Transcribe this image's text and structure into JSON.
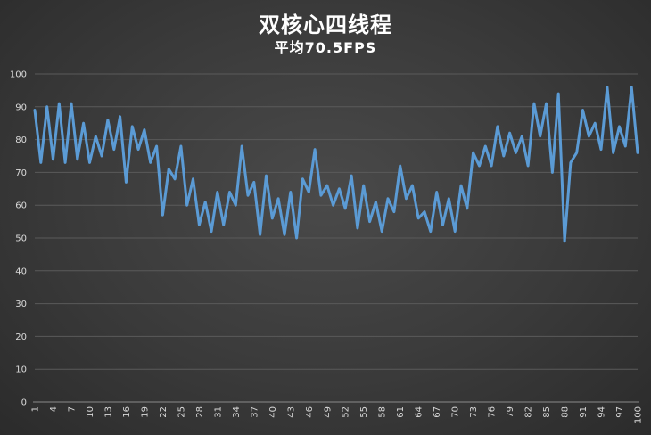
{
  "chart_data": {
    "type": "line",
    "title": "双核心四线程",
    "subtitle": "平均70.5FPS",
    "xlabel": "",
    "ylabel": "",
    "ylim": [
      0,
      100
    ],
    "yticks": [
      0,
      10,
      20,
      30,
      40,
      50,
      60,
      70,
      80,
      90,
      100
    ],
    "x": [
      1,
      2,
      3,
      4,
      5,
      6,
      7,
      8,
      9,
      10,
      11,
      12,
      13,
      14,
      15,
      16,
      17,
      18,
      19,
      20,
      21,
      22,
      23,
      24,
      25,
      26,
      27,
      28,
      29,
      30,
      31,
      32,
      33,
      34,
      35,
      36,
      37,
      38,
      39,
      40,
      41,
      42,
      43,
      44,
      45,
      46,
      47,
      48,
      49,
      50,
      51,
      52,
      53,
      54,
      55,
      56,
      57,
      58,
      59,
      60,
      61,
      62,
      63,
      64,
      65,
      66,
      67,
      68,
      69,
      70,
      71,
      72,
      73,
      74,
      75,
      76,
      77,
      78,
      79,
      80,
      81,
      82,
      83,
      84,
      85,
      86,
      87,
      88,
      89,
      90,
      91,
      92,
      93,
      94,
      95,
      96,
      97,
      98,
      99,
      100
    ],
    "xtick_labels": [
      "1",
      "4",
      "7",
      "10",
      "13",
      "16",
      "19",
      "22",
      "25",
      "28",
      "31",
      "34",
      "37",
      "40",
      "43",
      "46",
      "49",
      "52",
      "55",
      "58",
      "61",
      "64",
      "67",
      "70",
      "73",
      "76",
      "79",
      "82",
      "85",
      "88",
      "91",
      "94",
      "97",
      "100"
    ],
    "grid": true,
    "line_color": "#5b9bd5",
    "series": [
      {
        "values": [
          89,
          73,
          90,
          74,
          91,
          73,
          91,
          74,
          85,
          73,
          81,
          75,
          86,
          77,
          87,
          67,
          84,
          77,
          83,
          73,
          78,
          57,
          71,
          68,
          78,
          60,
          68,
          54,
          61,
          52,
          64,
          54,
          64,
          60,
          78,
          63,
          67,
          51,
          69,
          56,
          62,
          51,
          64,
          50,
          68,
          64,
          77,
          63,
          66,
          60,
          65,
          59,
          69,
          53,
          66,
          55,
          61,
          52,
          62,
          58,
          72,
          62,
          66,
          56,
          58,
          52,
          64,
          54,
          62,
          52,
          66,
          59,
          76,
          72,
          78,
          72,
          84,
          75,
          82,
          76,
          81,
          72,
          91,
          81,
          91,
          70,
          94,
          49,
          73,
          76,
          89,
          81,
          85,
          77,
          96,
          76,
          84,
          78,
          96,
          76
        ]
      }
    ]
  }
}
